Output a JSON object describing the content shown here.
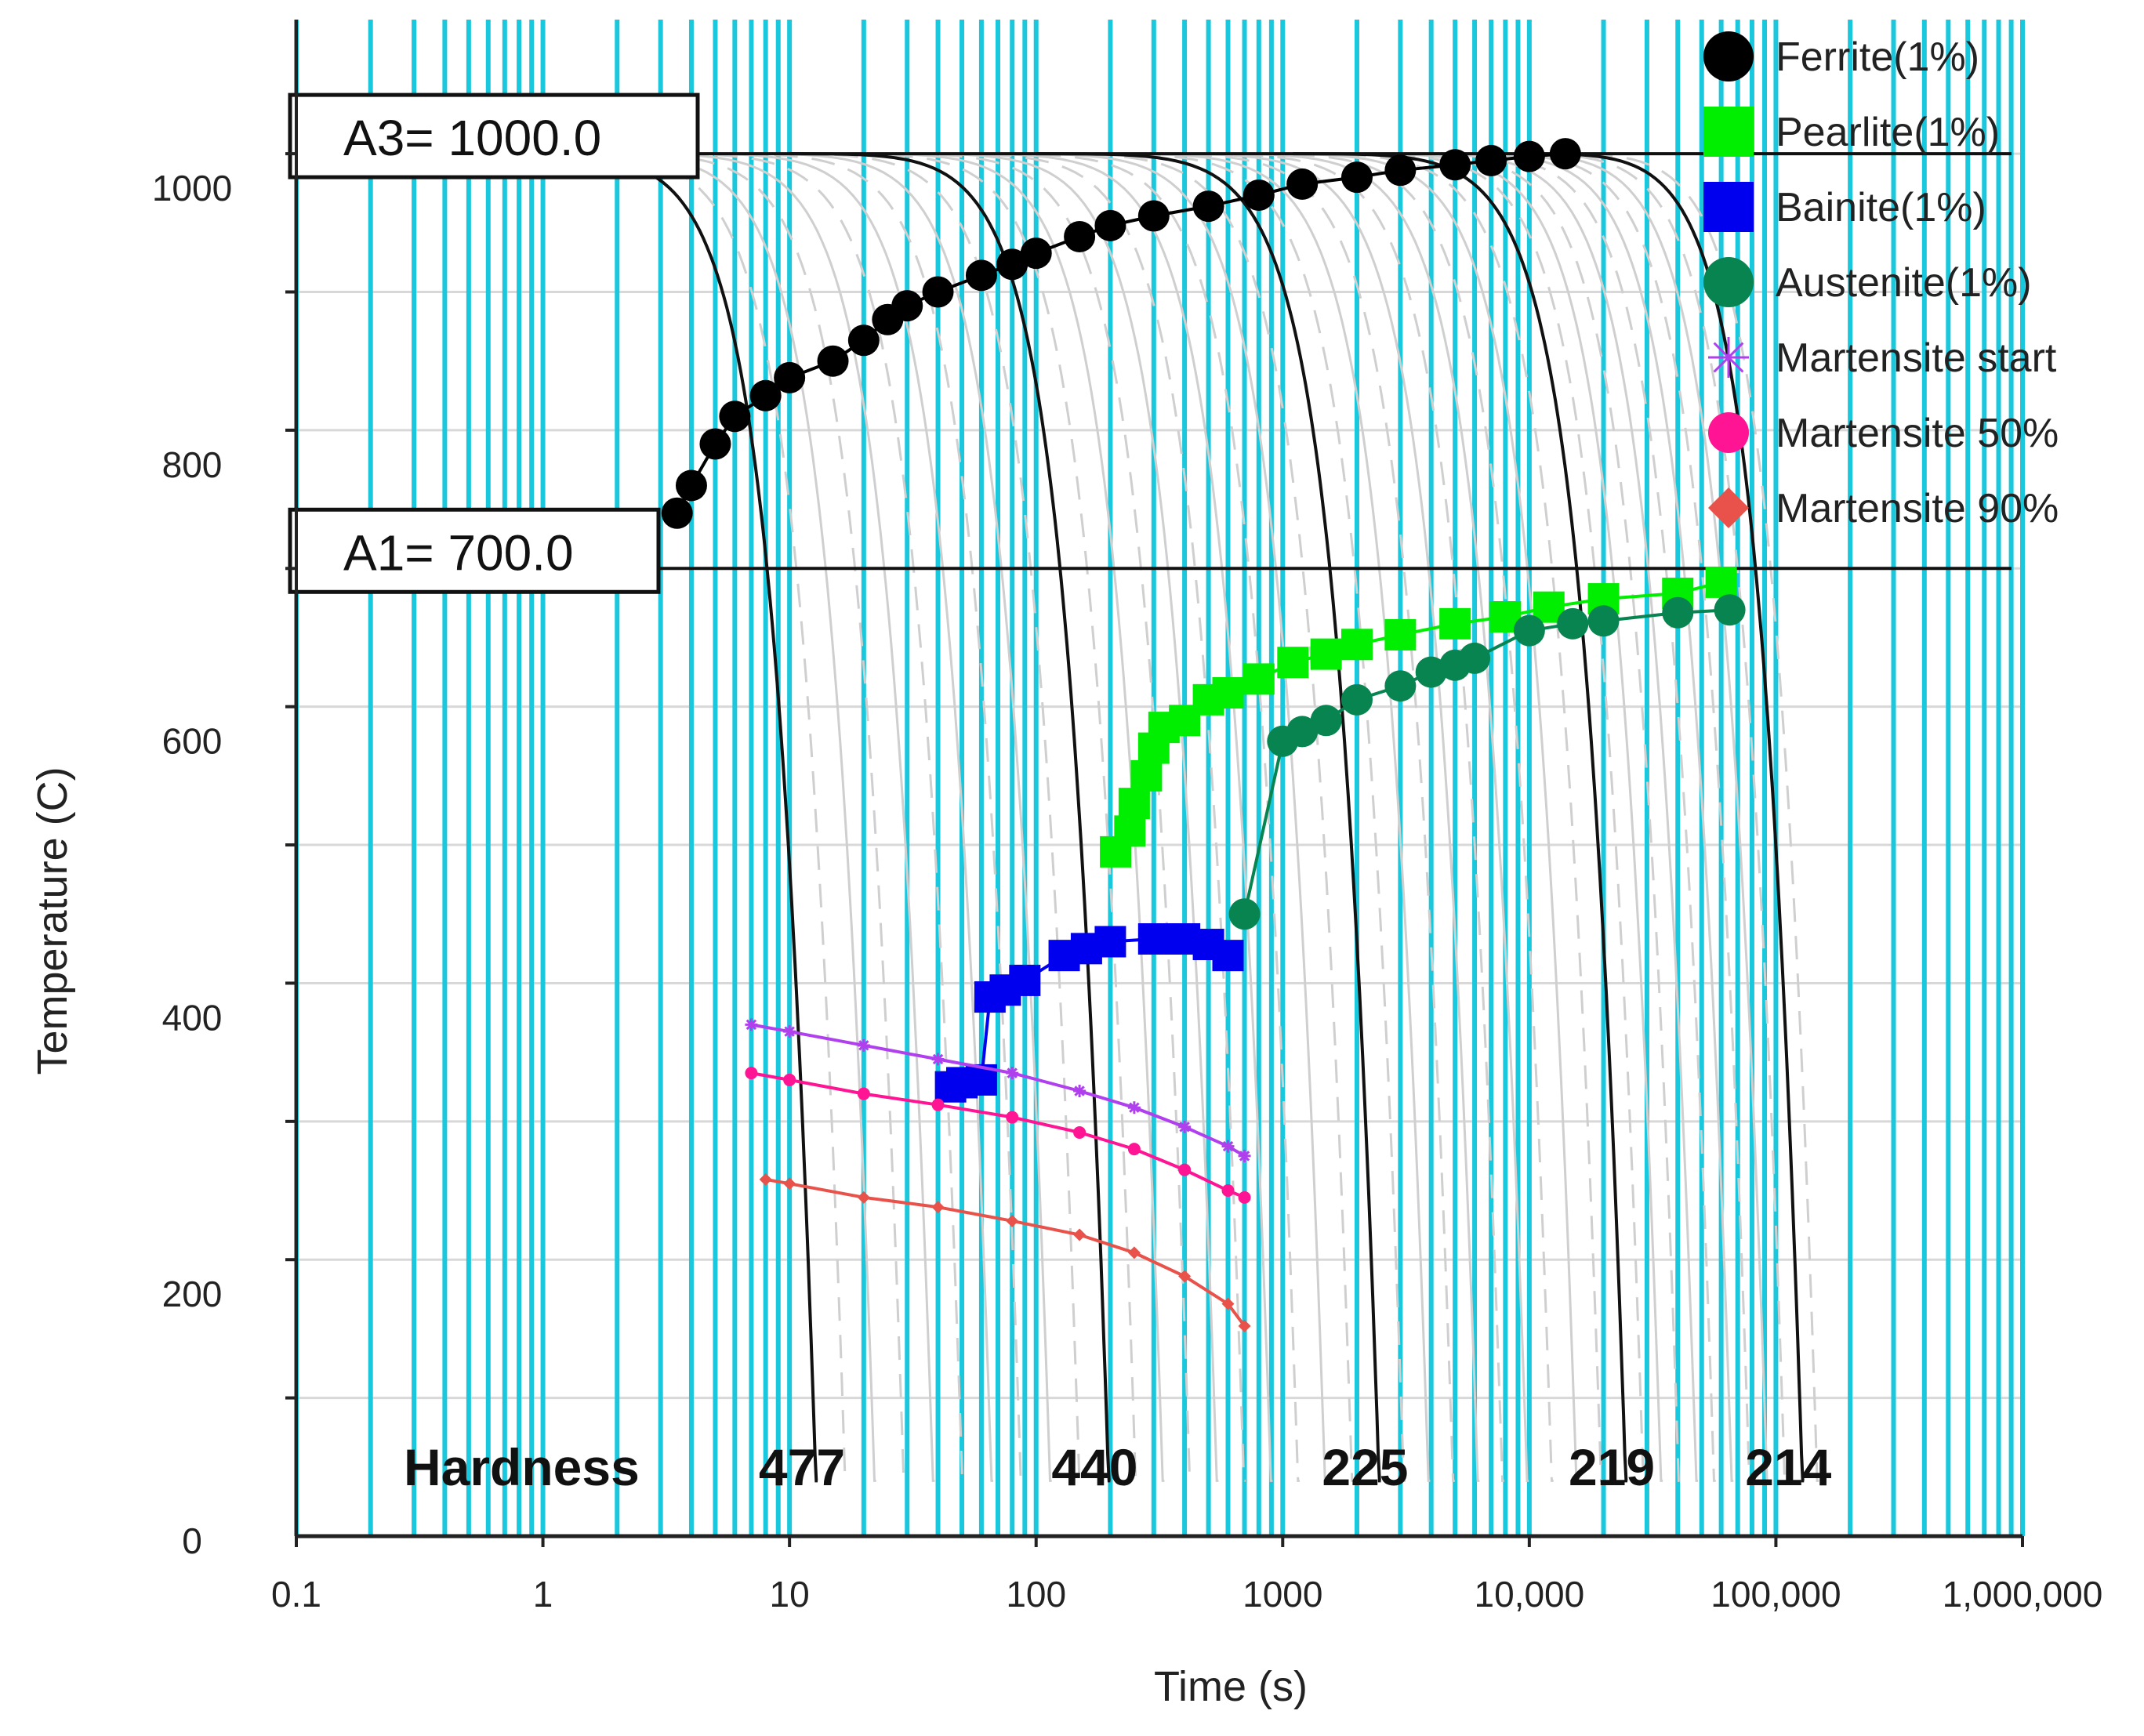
{
  "chart_data": {
    "type": "line",
    "title": "",
    "xlabel": "Time (s)",
    "ylabel": "Temperature (C)",
    "xscale": "log",
    "xlim": [
      0.1,
      1000000
    ],
    "ylim": [
      0,
      1080
    ],
    "x_ticks": [
      {
        "value": 0.1,
        "label": "0.1"
      },
      {
        "value": 1,
        "label": "1"
      },
      {
        "value": 10,
        "label": "10"
      },
      {
        "value": 100,
        "label": "100"
      },
      {
        "value": 1000,
        "label": "1000"
      },
      {
        "value": 10000,
        "label": "10,000"
      },
      {
        "value": 100000,
        "label": "100,000"
      },
      {
        "value": 1000000,
        "label": "1,000,000"
      }
    ],
    "y_ticks": [
      {
        "value": 0,
        "label": "0"
      },
      {
        "value": 200,
        "label": "200"
      },
      {
        "value": 400,
        "label": "400"
      },
      {
        "value": 600,
        "label": "600"
      },
      {
        "value": 800,
        "label": "800"
      },
      {
        "value": 1000,
        "label": "1000"
      }
    ],
    "reference_lines": [
      {
        "name": "A3",
        "label": "A3= 1000.0",
        "value": 1000
      },
      {
        "name": "A1",
        "label": "A1= 700.0",
        "value": 700
      }
    ],
    "hardness_label": "Hardness",
    "cooling_curves": [
      {
        "hardness": "477",
        "t0": 0.6,
        "t_end": 13
      },
      {
        "hardness": "440",
        "t0": 10,
        "t_end": 200
      },
      {
        "hardness": "225",
        "t0": 100,
        "t_end": 2500
      },
      {
        "hardness": "219",
        "t0": 1100,
        "t_end": 25000
      },
      {
        "hardness": "214",
        "t0": 10000,
        "t_end": 130000
      }
    ],
    "series": [
      {
        "name": "Ferrite(1%)",
        "color": "#000000",
        "marker": "circle",
        "points": [
          [
            3.5,
            740
          ],
          [
            4,
            760
          ],
          [
            5,
            790
          ],
          [
            6,
            810
          ],
          [
            8,
            825
          ],
          [
            10,
            838
          ],
          [
            15,
            850
          ],
          [
            20,
            865
          ],
          [
            25,
            880
          ],
          [
            30,
            890
          ],
          [
            40,
            900
          ],
          [
            60,
            912
          ],
          [
            80,
            920
          ],
          [
            100,
            928
          ],
          [
            150,
            940
          ],
          [
            200,
            948
          ],
          [
            300,
            955
          ],
          [
            500,
            962
          ],
          [
            800,
            970
          ],
          [
            1200,
            978
          ],
          [
            2000,
            983
          ],
          [
            3000,
            988
          ],
          [
            5000,
            992
          ],
          [
            7000,
            995
          ],
          [
            10000,
            998
          ],
          [
            14000,
            1000
          ]
        ]
      },
      {
        "name": "Pearlite(1%)",
        "color": "#00ee00",
        "marker": "square",
        "points": [
          [
            210,
            495
          ],
          [
            240,
            510
          ],
          [
            250,
            530
          ],
          [
            280,
            550
          ],
          [
            300,
            570
          ],
          [
            330,
            585
          ],
          [
            400,
            590
          ],
          [
            500,
            605
          ],
          [
            600,
            610
          ],
          [
            800,
            620
          ],
          [
            1100,
            632
          ],
          [
            1500,
            638
          ],
          [
            2000,
            645
          ],
          [
            3000,
            652
          ],
          [
            5000,
            660
          ],
          [
            8000,
            665
          ],
          [
            12000,
            672
          ],
          [
            20000,
            678
          ],
          [
            40000,
            682
          ],
          [
            60000,
            690
          ]
        ]
      },
      {
        "name": "Bainite(1%)",
        "color": "#0000ee",
        "marker": "square",
        "points": [
          [
            45,
            325
          ],
          [
            50,
            328
          ],
          [
            60,
            330
          ],
          [
            65,
            390
          ],
          [
            75,
            395
          ],
          [
            90,
            402
          ],
          [
            130,
            420
          ],
          [
            160,
            425
          ],
          [
            200,
            430
          ],
          [
            300,
            432
          ],
          [
            400,
            432
          ],
          [
            500,
            428
          ],
          [
            600,
            420
          ]
        ]
      },
      {
        "name": "Austenite(1%)",
        "color": "#088450",
        "marker": "circle",
        "points": [
          [
            700,
            450
          ],
          [
            1000,
            575
          ],
          [
            1200,
            582
          ],
          [
            1500,
            590
          ],
          [
            2000,
            605
          ],
          [
            3000,
            615
          ],
          [
            4000,
            625
          ],
          [
            5000,
            630
          ],
          [
            6000,
            635
          ],
          [
            10000,
            655
          ],
          [
            15000,
            660
          ],
          [
            20000,
            662
          ],
          [
            40000,
            668
          ],
          [
            65000,
            670
          ]
        ]
      },
      {
        "name": "Martensite start",
        "color": "#b040ee",
        "marker": "star",
        "points": [
          [
            7,
            370
          ],
          [
            10,
            365
          ],
          [
            20,
            355
          ],
          [
            40,
            345
          ],
          [
            80,
            335
          ],
          [
            150,
            322
          ],
          [
            250,
            310
          ],
          [
            400,
            296
          ],
          [
            600,
            282
          ],
          [
            700,
            275
          ]
        ]
      },
      {
        "name": "Martensite 50%",
        "color": "#ff1493",
        "marker": "circle",
        "points": [
          [
            7,
            335
          ],
          [
            10,
            330
          ],
          [
            20,
            320
          ],
          [
            40,
            312
          ],
          [
            80,
            303
          ],
          [
            150,
            292
          ],
          [
            250,
            280
          ],
          [
            400,
            265
          ],
          [
            600,
            250
          ],
          [
            700,
            245
          ]
        ]
      },
      {
        "name": "Martensite 90%",
        "color": "#e8524a",
        "marker": "diamond",
        "points": [
          [
            8,
            258
          ],
          [
            10,
            255
          ],
          [
            20,
            245
          ],
          [
            40,
            238
          ],
          [
            80,
            228
          ],
          [
            150,
            218
          ],
          [
            250,
            205
          ],
          [
            400,
            188
          ],
          [
            600,
            168
          ],
          [
            700,
            152
          ]
        ]
      }
    ]
  }
}
